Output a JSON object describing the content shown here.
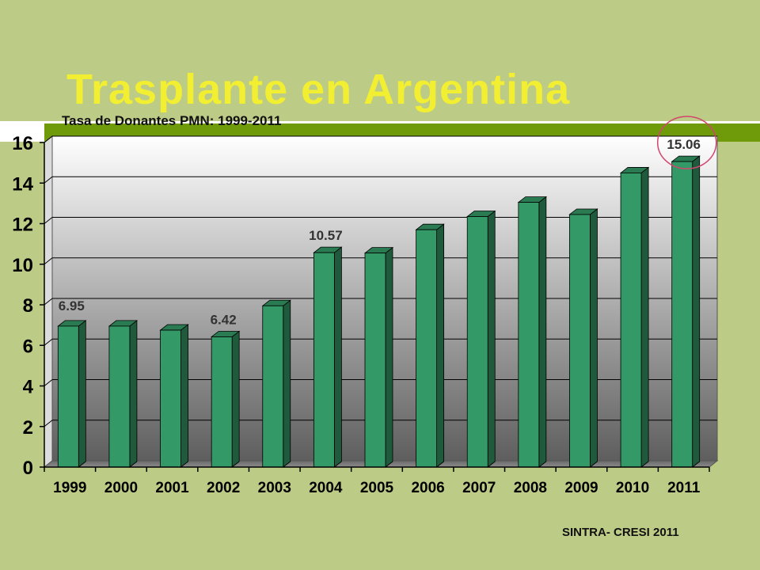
{
  "slide": {
    "title": "Trasplante en Argentina",
    "source": "SINTRA- CRESI 2011"
  },
  "colors": {
    "background": "#bccb85",
    "title": "#f2ee32",
    "band": "#6f9a0a",
    "bar_front": "#339966",
    "bar_side": "#1f5a3c",
    "bar_top": "#2a7a52",
    "highlight_circle": "#d2466e"
  },
  "chart_data": {
    "type": "bar",
    "title": "Tasa de Donantes PMN: 1999-2011",
    "categories": [
      "1999",
      "2000",
      "2001",
      "2002",
      "2003",
      "2004",
      "2005",
      "2006",
      "2007",
      "2008",
      "2009",
      "2010",
      "2011"
    ],
    "values": [
      6.95,
      6.95,
      6.75,
      6.42,
      7.95,
      10.57,
      10.55,
      11.7,
      12.35,
      13.05,
      12.45,
      14.5,
      15.06
    ],
    "data_labels": [
      {
        "index": 0,
        "text": "6.95"
      },
      {
        "index": 3,
        "text": "6.42"
      },
      {
        "index": 5,
        "text": "10.57"
      },
      {
        "index": 12,
        "text": "15.06"
      }
    ],
    "highlight_index": 12,
    "ylim": [
      0,
      16
    ],
    "yticks": [
      "0",
      "2",
      "4",
      "6",
      "8",
      "10",
      "12",
      "14",
      "16"
    ],
    "grid": true,
    "legend": false,
    "style": "3d-bar"
  }
}
